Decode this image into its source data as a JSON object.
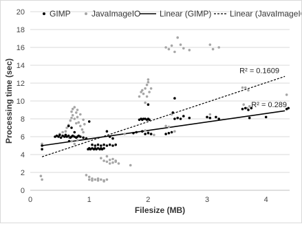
{
  "chart_data": {
    "type": "scatter",
    "title": "",
    "xlabel": "Filesize (MB)",
    "ylabel": "Processing time (sec)",
    "xlim": [
      0,
      4.4
    ],
    "ylim": [
      0,
      20
    ],
    "x_ticks": [
      0,
      1,
      2,
      3,
      4
    ],
    "y_ticks": [
      0,
      2,
      4,
      6,
      8,
      10,
      12,
      14,
      16,
      18,
      20
    ],
    "grid": "horizontal",
    "legend_position": "top",
    "legend": [
      "GIMP",
      "JavaImageIO",
      "Linear (GIMP)",
      "Linear (JavaImageIO)"
    ],
    "series": [
      {
        "name": "GIMP",
        "color": "#000000",
        "points": [
          [
            0.2,
            4.6
          ],
          [
            0.2,
            5.0
          ],
          [
            0.42,
            6.0
          ],
          [
            0.45,
            6.1
          ],
          [
            0.48,
            6.0
          ],
          [
            0.5,
            6.2
          ],
          [
            0.52,
            5.9
          ],
          [
            0.55,
            6.1
          ],
          [
            0.58,
            6.0
          ],
          [
            0.6,
            6.2
          ],
          [
            0.62,
            6.0
          ],
          [
            0.65,
            6.1
          ],
          [
            0.68,
            5.9
          ],
          [
            0.7,
            6.0
          ],
          [
            0.72,
            6.1
          ],
          [
            0.75,
            6.0
          ],
          [
            0.78,
            5.9
          ],
          [
            0.8,
            6.0
          ],
          [
            0.82,
            6.1
          ],
          [
            0.85,
            6.0
          ],
          [
            0.9,
            5.9
          ],
          [
            0.95,
            5.8
          ],
          [
            0.65,
            7.2
          ],
          [
            0.7,
            7.0
          ],
          [
            0.75,
            6.5
          ],
          [
            0.66,
            5.5
          ],
          [
            0.98,
            4.6
          ],
          [
            1.0,
            4.7
          ],
          [
            1.02,
            4.6
          ],
          [
            1.05,
            4.7
          ],
          [
            1.08,
            4.6
          ],
          [
            1.1,
            4.7
          ],
          [
            1.12,
            4.6
          ],
          [
            1.15,
            4.7
          ],
          [
            1.18,
            4.6
          ],
          [
            1.2,
            4.7
          ],
          [
            1.22,
            4.6
          ],
          [
            1.25,
            4.7
          ],
          [
            1.05,
            5.1
          ],
          [
            1.1,
            5.0
          ],
          [
            1.15,
            5.1
          ],
          [
            1.2,
            5.0
          ],
          [
            1.25,
            5.1
          ],
          [
            1.3,
            5.0
          ],
          [
            1.35,
            5.1
          ],
          [
            1.4,
            5.0
          ],
          [
            1.45,
            5.1
          ],
          [
            1.3,
            6.6
          ],
          [
            1.35,
            6.0
          ],
          [
            1.4,
            5.8
          ],
          [
            1.0,
            7.7
          ],
          [
            1.75,
            6.4
          ],
          [
            1.8,
            6.5
          ],
          [
            1.85,
            7.9
          ],
          [
            1.88,
            8.0
          ],
          [
            1.9,
            7.9
          ],
          [
            1.92,
            8.0
          ],
          [
            1.95,
            8.0
          ],
          [
            1.98,
            7.9
          ],
          [
            2.0,
            8.0
          ],
          [
            2.02,
            7.9
          ],
          [
            1.95,
            6.3
          ],
          [
            2.0,
            6.4
          ],
          [
            2.05,
            6.3
          ],
          [
            2.0,
            9.6
          ],
          [
            1.9,
            6.6
          ],
          [
            2.3,
            6.3
          ],
          [
            2.35,
            6.4
          ],
          [
            2.4,
            6.5
          ],
          [
            2.45,
            8.0
          ],
          [
            2.5,
            8.1
          ],
          [
            2.55,
            8.0
          ],
          [
            2.45,
            10.3
          ],
          [
            2.42,
            8.7
          ],
          [
            2.7,
            8.1
          ],
          [
            2.6,
            8.3
          ],
          [
            3.0,
            8.2
          ],
          [
            3.05,
            8.1
          ],
          [
            3.15,
            8.2
          ],
          [
            3.2,
            8.0
          ],
          [
            3.6,
            9.1
          ],
          [
            3.65,
            9.2
          ],
          [
            3.7,
            9.0
          ],
          [
            3.72,
            8.1
          ],
          [
            3.75,
            9.2
          ],
          [
            4.0,
            8.2
          ],
          [
            4.35,
            9.1
          ],
          [
            4.38,
            9.2
          ]
        ]
      },
      {
        "name": "JavaImageIO",
        "color": "#a6a6a6",
        "points": [
          [
            0.18,
            1.6
          ],
          [
            0.2,
            1.2
          ],
          [
            0.2,
            5.2
          ],
          [
            0.5,
            6.3
          ],
          [
            0.55,
            6.5
          ],
          [
            0.6,
            6.2
          ],
          [
            0.62,
            7.0
          ],
          [
            0.65,
            7.3
          ],
          [
            0.68,
            7.8
          ],
          [
            0.7,
            8.1
          ],
          [
            0.72,
            8.4
          ],
          [
            0.75,
            8.0
          ],
          [
            0.78,
            7.5
          ],
          [
            0.7,
            8.8
          ],
          [
            0.72,
            9.1
          ],
          [
            0.75,
            9.3
          ],
          [
            0.78,
            8.7
          ],
          [
            0.8,
            8.2
          ],
          [
            0.82,
            7.6
          ],
          [
            0.85,
            7.2
          ],
          [
            0.88,
            6.8
          ],
          [
            0.9,
            6.5
          ],
          [
            0.7,
            5.5
          ],
          [
            0.75,
            5.2
          ],
          [
            0.8,
            5.6
          ],
          [
            0.85,
            6.0
          ],
          [
            0.66,
            5.9
          ],
          [
            0.6,
            6.6
          ],
          [
            0.8,
            9.0
          ],
          [
            0.85,
            8.5
          ],
          [
            0.9,
            7.9
          ],
          [
            0.92,
            7.4
          ],
          [
            0.95,
            1.7
          ],
          [
            1.0,
            1.5
          ],
          [
            1.05,
            1.3
          ],
          [
            1.1,
            1.2
          ],
          [
            1.15,
            1.1
          ],
          [
            1.2,
            1.2
          ],
          [
            1.25,
            1.1
          ],
          [
            1.3,
            1.2
          ],
          [
            1.05,
            1.1
          ],
          [
            1.15,
            1.3
          ],
          [
            1.25,
            1.0
          ],
          [
            1.0,
            1.2
          ],
          [
            1.25,
            3.3
          ],
          [
            1.3,
            3.2
          ],
          [
            1.35,
            3.4
          ],
          [
            1.4,
            3.1
          ],
          [
            1.45,
            3.3
          ],
          [
            1.5,
            3.0
          ],
          [
            1.35,
            3.0
          ],
          [
            1.4,
            3.5
          ],
          [
            1.45,
            3.2
          ],
          [
            1.2,
            3.6
          ],
          [
            1.3,
            3.8
          ],
          [
            1.7,
            2.8
          ],
          [
            1.6,
            6.3
          ],
          [
            1.85,
            10.5
          ],
          [
            1.88,
            11.0
          ],
          [
            1.9,
            11.2
          ],
          [
            1.92,
            10.8
          ],
          [
            1.95,
            11.4
          ],
          [
            1.98,
            11.8
          ],
          [
            2.0,
            12.1
          ],
          [
            2.02,
            11.0
          ],
          [
            1.98,
            10.5
          ],
          [
            1.95,
            9.8
          ],
          [
            2.0,
            12.4
          ],
          [
            2.05,
            11.4
          ],
          [
            2.0,
            6.5
          ],
          [
            2.05,
            6.3
          ],
          [
            1.95,
            6.7
          ],
          [
            2.1,
            6.2
          ],
          [
            2.3,
            16.0
          ],
          [
            2.35,
            15.8
          ],
          [
            2.4,
            16.2
          ],
          [
            2.5,
            17.1
          ],
          [
            2.45,
            15.5
          ],
          [
            2.55,
            16.3
          ],
          [
            2.6,
            15.9
          ],
          [
            2.7,
            15.7
          ],
          [
            2.4,
            8.5
          ],
          [
            2.35,
            7.1
          ],
          [
            2.45,
            6.6
          ],
          [
            2.3,
            7.2
          ],
          [
            3.05,
            16.3
          ],
          [
            3.1,
            15.8
          ],
          [
            3.2,
            16.0
          ],
          [
            3.0,
            8.2
          ],
          [
            3.05,
            8.5
          ],
          [
            3.6,
            11.5
          ],
          [
            3.65,
            11.5
          ],
          [
            3.7,
            11.2
          ],
          [
            3.62,
            9.6
          ],
          [
            3.68,
            9.2
          ],
          [
            3.72,
            9.4
          ],
          [
            4.35,
            10.7
          ]
        ]
      }
    ],
    "trendlines": [
      {
        "name": "Linear (GIMP)",
        "style": "solid",
        "color": "#000000",
        "x": [
          0.2,
          4.32
        ],
        "y": [
          5.0,
          8.9
        ],
        "r2_label": "R² = 0.289",
        "r2_at": [
          3.75,
          9.3
        ]
      },
      {
        "name": "Linear (JavaImageIO)",
        "style": "dashed",
        "color": "#000000",
        "x": [
          0.2,
          4.32
        ],
        "y": [
          3.75,
          12.75
        ],
        "r2_label": "R² = 0.1609",
        "r2_at": [
          3.55,
          13.1
        ]
      }
    ]
  }
}
